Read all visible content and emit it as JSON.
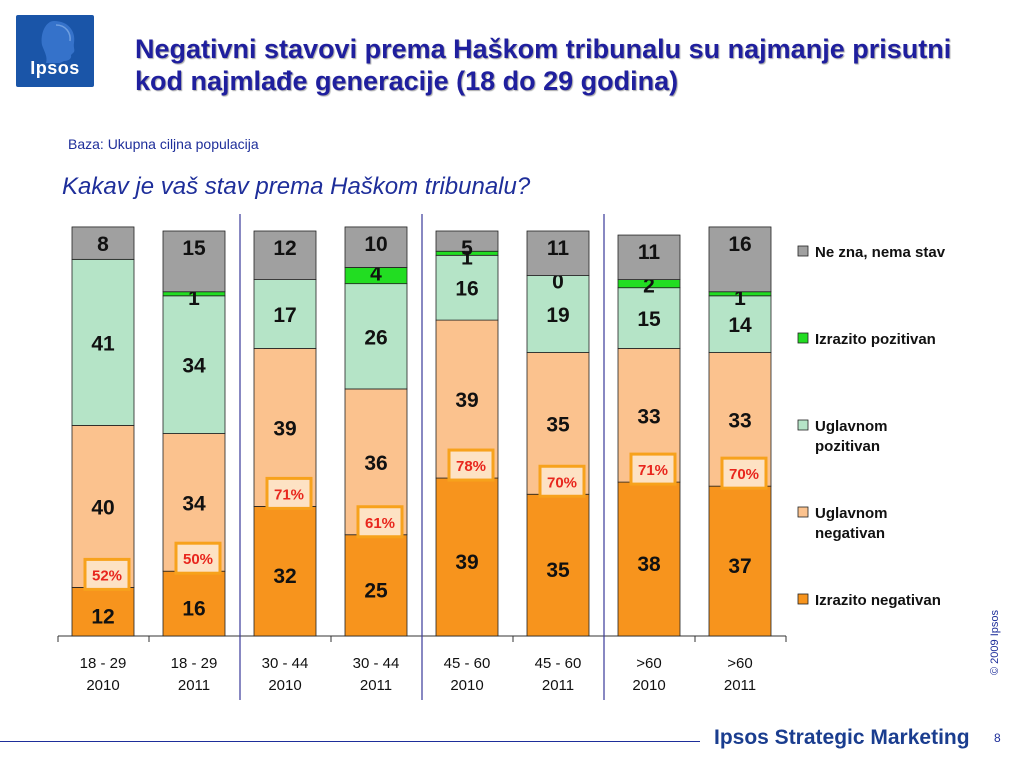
{
  "header": {
    "logo_text": "Ipsos",
    "title": "Negativni stavovi prema Haškom tribunalu su najmanje prisutni kod najmlađe generacije (18 do 29 godina)",
    "base_note": "Baza: Ukupna ciljna populacija",
    "question": "Kakav je vaš stav prema Haškom tribunalu?"
  },
  "chart_data": {
    "type": "bar",
    "stacked": true,
    "categories": [
      "18 - 29\n2010",
      "18 - 29\n2011",
      "30 - 44\n2010",
      "30 - 44\n2011",
      "45 - 60\n2010",
      "45 - 60\n2011",
      ">60\n2010",
      ">60\n2011"
    ],
    "series": [
      {
        "name": "Izrazito negativan",
        "color": "#f7941d",
        "values": [
          12,
          16,
          32,
          25,
          39,
          35,
          38,
          37
        ]
      },
      {
        "name": "Uglavnom negativan",
        "color": "#fbc28e",
        "values": [
          40,
          34,
          39,
          36,
          39,
          35,
          33,
          33
        ]
      },
      {
        "name": "Uglavnom pozitivan",
        "color": "#b5e4c7",
        "values": [
          41,
          34,
          17,
          26,
          16,
          19,
          15,
          14
        ]
      },
      {
        "name": "Izrazito pozitivan",
        "color": "#22dd22",
        "values": [
          0,
          1,
          0,
          4,
          1,
          0,
          2,
          1
        ]
      },
      {
        "name": "Ne zna, nema stav",
        "color": "#a0a0a0",
        "values": [
          8,
          15,
          12,
          10,
          5,
          11,
          11,
          16
        ]
      }
    ],
    "segment_labels": [
      [
        "12",
        "40",
        "41",
        "",
        "8"
      ],
      [
        "16",
        "34",
        "34",
        "1",
        "15"
      ],
      [
        "32",
        "39",
        "17",
        "",
        "12"
      ],
      [
        "25",
        "36",
        "26",
        "4",
        "10"
      ],
      [
        "39",
        "39",
        "16",
        "1",
        "5"
      ],
      [
        "35",
        "35",
        "19",
        "0",
        "11"
      ],
      [
        "38",
        "33",
        "15",
        "2",
        "11"
      ],
      [
        "37",
        "33",
        "14",
        "1",
        "16"
      ]
    ],
    "negative_totals": [
      "52%",
      "50%",
      "71%",
      "61%",
      "78%",
      "70%",
      "71%",
      "70%"
    ],
    "ylim": [
      0,
      100
    ],
    "legend_position": "right",
    "grid": false
  },
  "footer": {
    "copyright": "© 2009 Ipsos",
    "brand": "Ipsos Strategic Marketing",
    "page_number": "8"
  }
}
